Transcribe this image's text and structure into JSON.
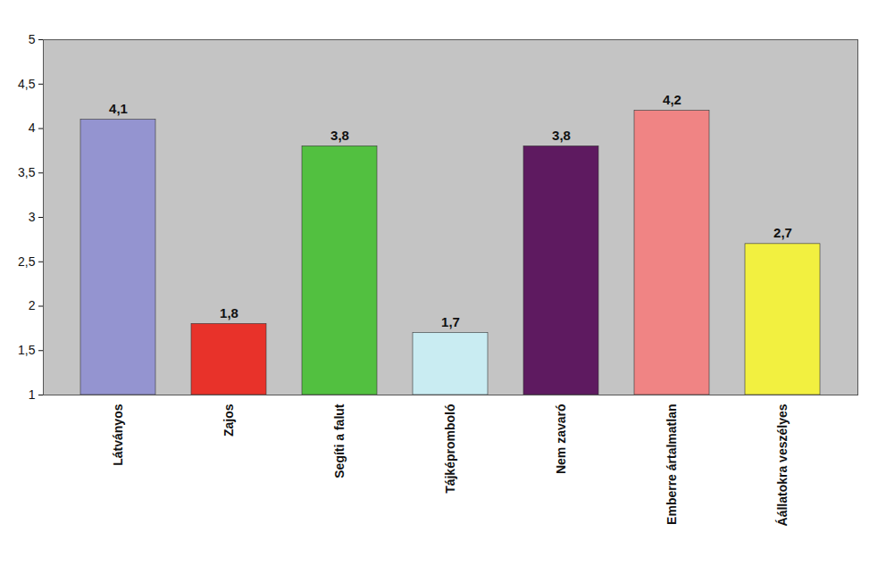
{
  "chart_data": {
    "type": "bar",
    "categories": [
      "Látványos",
      "Zajos",
      "Segíti a falut",
      "Tájképromboló",
      "Nem zavaró",
      "Emberre ártalmatlan",
      "Áállatokra veszélyes"
    ],
    "values": [
      4.1,
      1.8,
      3.8,
      1.7,
      3.8,
      4.2,
      2.7
    ],
    "value_labels": [
      "4,1",
      "1,8",
      "3,8",
      "1,7",
      "3,8",
      "4,2",
      "2,7"
    ],
    "colors": [
      "#9494d0",
      "#e8322a",
      "#52c040",
      "#c9ecf2",
      "#5e1a60",
      "#f08484",
      "#f2f040"
    ],
    "ylim": [
      1,
      5
    ],
    "yticks": [
      1,
      {
        "value": 1.5,
        "label": "1,5"
      },
      2,
      {
        "value": 2.5,
        "label": "2,5"
      },
      3,
      {
        "value": 3.5,
        "label": "3,5"
      },
      4,
      {
        "value": 4.5,
        "label": "4,5"
      },
      5
    ],
    "grid": false,
    "data_labels": true
  }
}
